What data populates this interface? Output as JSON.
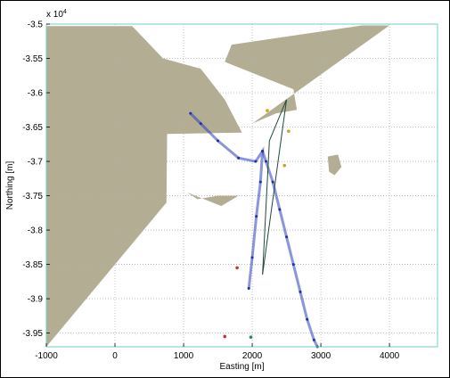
{
  "chart_data": {
    "type": "scatter",
    "title": "",
    "xlabel": "Easting [m]",
    "ylabel": "Northing [m]",
    "y_exponent_label": "x 10",
    "y_exponent_power": "4",
    "xlim": [
      -1000,
      4700
    ],
    "ylim": [
      -39700,
      -35000
    ],
    "grid": true,
    "x_ticks": [
      -1000,
      0,
      1000,
      2000,
      3000,
      4000
    ],
    "x_tick_labels": [
      "-1000",
      "0",
      "1000",
      "2000",
      "3000",
      "4000"
    ],
    "y_ticks": [
      -35000,
      -35500,
      -36000,
      -36500,
      -37000,
      -37500,
      -38000,
      -38500,
      -39000,
      -39500
    ],
    "y_tick_labels": [
      "-3.5",
      "-3.55",
      "-3.6",
      "-3.65",
      "-3.7",
      "-3.75",
      "-3.8",
      "-3.85",
      "-3.9",
      "-3.95"
    ],
    "colors": {
      "land": "#b3ad94",
      "axes_box": "#6fd0c8",
      "grid": "#b0b0b0",
      "track": "#2a3fb8",
      "track_dense": "#1f2fa6",
      "route_line": "#1f4a3a"
    },
    "land_polygons": [
      {
        "name": "west-coast",
        "x": [
          -1000,
          -1000,
          750,
          760,
          1850,
          1600,
          1250,
          700,
          250,
          -500,
          -1000
        ],
        "y": [
          -35030,
          -39700,
          -37600,
          -36600,
          -36580,
          -36100,
          -35650,
          -35500,
          -35030,
          -35030,
          -35030
        ]
      },
      {
        "name": "east-coast",
        "x": [
          1700,
          1600,
          2600,
          2650,
          2350,
          2000,
          4000,
          3600,
          1700
        ],
        "y": [
          -35300,
          -35550,
          -35950,
          -36250,
          -36300,
          -36450,
          -35020,
          -35020,
          -35300
        ]
      },
      {
        "name": "south-breakwater",
        "x": [
          1050,
          1200,
          1500,
          1800,
          1550,
          1050
        ],
        "y": [
          -37450,
          -37550,
          -37500,
          -37500,
          -37650,
          -37450
        ]
      },
      {
        "name": "island",
        "x": [
          3100,
          3250,
          3300,
          3200,
          3120,
          3100
        ],
        "y": [
          -36930,
          -36900,
          -37080,
          -37200,
          -37150,
          -36930
        ]
      }
    ],
    "series": [
      {
        "values_x": [
          1100,
          1250,
          1500,
          1800,
          2050,
          2150,
          2120,
          2060,
          2000,
          1950
        ],
        "values_y": [
          -36300,
          -36450,
          -36700,
          -36950,
          -37000,
          -36850,
          -37300,
          -37800,
          -38400,
          -38850
        ]
      },
      {
        "values_x": [
          2150,
          2200,
          2300,
          2400,
          2500,
          2600,
          2700,
          2800,
          2900,
          2950
        ],
        "values_y": [
          -36850,
          -37000,
          -37300,
          -37700,
          -38100,
          -38500,
          -38900,
          -39300,
          -39600,
          -39700
        ]
      }
    ],
    "route_line": {
      "x": [
        2150,
        2250,
        2500,
        2150
      ],
      "y": [
        -38650,
        -36700,
        -36100,
        -38650
      ]
    },
    "markers": [
      {
        "x": 1780,
        "y": -38550,
        "color": "#c0392b"
      },
      {
        "x": 1600,
        "y": -39550,
        "color": "#c0392b"
      },
      {
        "x": 1980,
        "y": -39560,
        "color": "#2e8b57"
      },
      {
        "x": 2220,
        "y": -36260,
        "color": "#d4a017"
      },
      {
        "x": 2530,
        "y": -36560,
        "color": "#d4a017"
      },
      {
        "x": 2470,
        "y": -37060,
        "color": "#d4a017"
      }
    ]
  }
}
